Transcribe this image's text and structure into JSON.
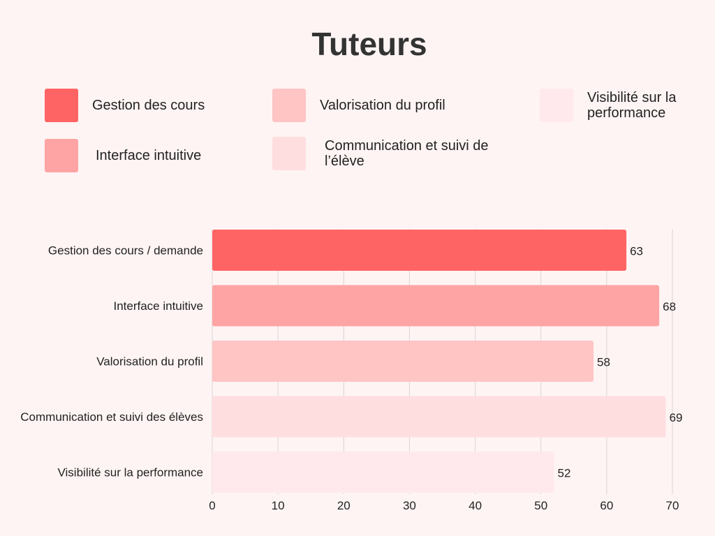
{
  "title": "Tuteurs",
  "legend": [
    {
      "label": "Gestion des cours",
      "color": "#FF6464"
    },
    {
      "label": "Valorisation du profil",
      "color": "#FFC4C4"
    },
    {
      "label": "Visibilité sur la performance",
      "color": "#FFE9EC"
    },
    {
      "label": "Interface intuitive",
      "color": "#FFA4A4"
    },
    {
      "label": "Communication et suivi de l’élève",
      "color": "#FFDEE0"
    }
  ],
  "chart_data": {
    "type": "bar",
    "orientation": "horizontal",
    "title": "Tuteurs",
    "categories": [
      "Gestion des cours / demande",
      "Interface intuitive",
      "Valorisation du profil",
      "Communication et suivi des élèves",
      "Visibilité sur la performance"
    ],
    "values": [
      63,
      68,
      58,
      69,
      52
    ],
    "colors": [
      "#FF6464",
      "#FFA4A4",
      "#FFC4C4",
      "#FFDEE0",
      "#FFE9EC"
    ],
    "xlim": [
      0,
      70
    ],
    "ticks": [
      "0",
      "10",
      "20",
      "30",
      "40",
      "50",
      "60",
      "70"
    ],
    "grid": true,
    "data_labels": true,
    "legend_position": "top"
  }
}
